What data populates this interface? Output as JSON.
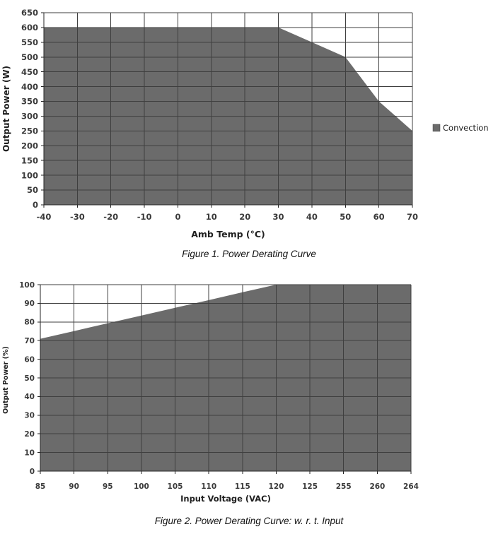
{
  "colors": {
    "series_fill": "#6b6b6b",
    "gridline": "#3f3f3f",
    "axis": "#262626",
    "tick_label": "#3a3a3a",
    "caption_text": "#111111"
  },
  "chart_data": [
    {
      "type": "area",
      "caption": "Figure 1. Power Derating Curve",
      "xlabel": "Amb Temp (°C)",
      "ylabel": "Output Power (W)",
      "categories": [
        -40,
        -30,
        -20,
        -10,
        0,
        10,
        20,
        30,
        40,
        50,
        60,
        70
      ],
      "series": [
        {
          "name": "Convection",
          "values": [
            600,
            600,
            600,
            600,
            600,
            600,
            600,
            600,
            550,
            500,
            350,
            250
          ]
        }
      ],
      "ylim": [
        0,
        650
      ],
      "ytick_step": 50,
      "grid": true,
      "legend": {
        "label": "Convection",
        "position": "right"
      }
    },
    {
      "type": "area",
      "caption": "Figure 2. Power Derating Curve: w. r. t. Input",
      "xlabel": "Input Voltage (VAC)",
      "ylabel": "Output Power (%)",
      "categories": [
        85,
        90,
        95,
        100,
        105,
        110,
        115,
        120,
        125,
        255,
        260,
        264
      ],
      "series": [
        {
          "name": "Output Power",
          "values": [
            71,
            75.1,
            79.3,
            83.4,
            87.6,
            91.7,
            95.9,
            100,
            100,
            100,
            100,
            100
          ]
        }
      ],
      "ylim": [
        0,
        100
      ],
      "ytick_step": 10,
      "grid": true,
      "legend": null
    }
  ]
}
